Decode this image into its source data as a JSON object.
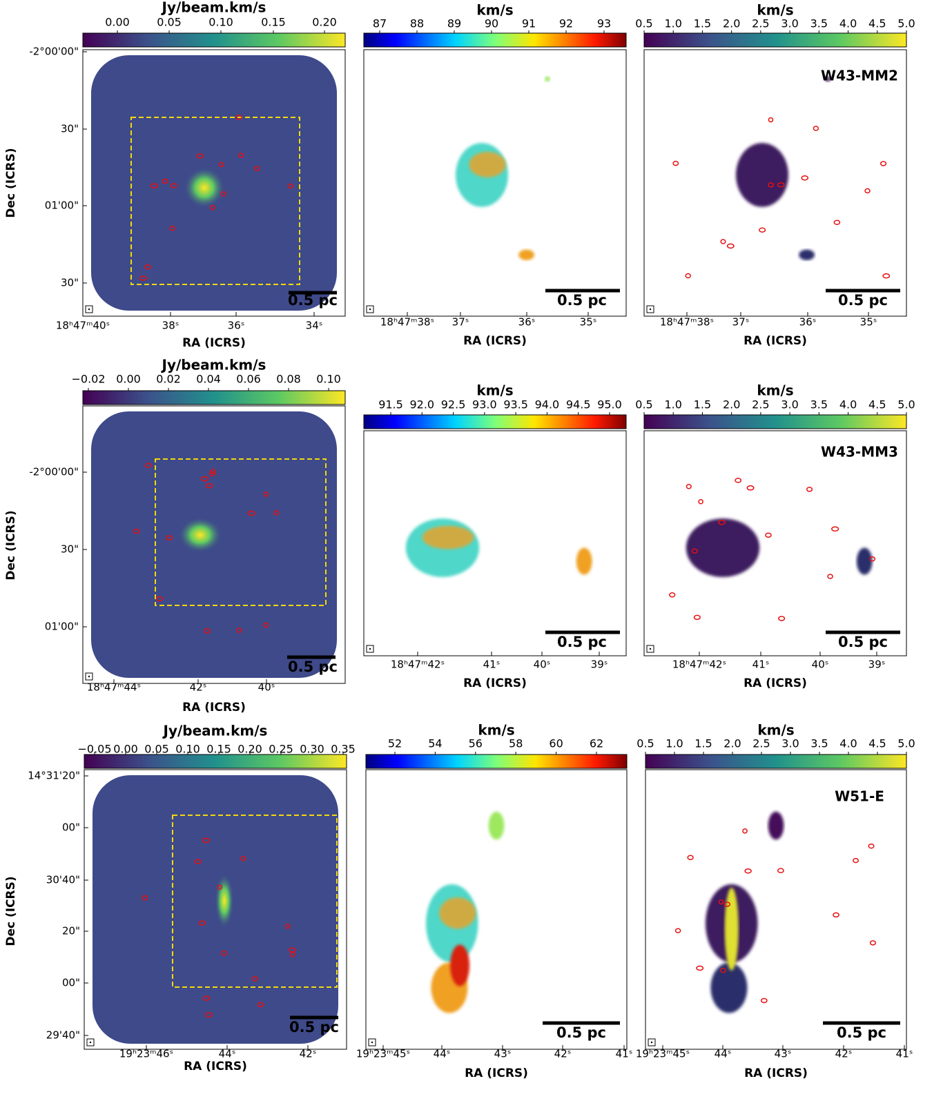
{
  "panels": [
    {
      "colorbar_label": "Jy/beam.km/s",
      "colorbar_ticks": [
        "0.00",
        "0.05",
        "0.10",
        "0.15",
        "0.20"
      ],
      "dec_label": "Dec (ICRS)",
      "dec_ticks": [
        "-2°00'00\"",
        "30\"",
        "01'00\"",
        "30\""
      ],
      "ra_label": "RA (ICRS)",
      "ra_ticks": [
        "18ʰ47ᵐ40ˢ",
        "38ˢ",
        "36ˢ",
        "34ˢ"
      ],
      "scale_label": "0.5 pc"
    },
    {
      "colorbar_label": "km/s",
      "colorbar_ticks": [
        "87",
        "88",
        "89",
        "90",
        "91",
        "92",
        "93"
      ],
      "ra_label": "RA (ICRS)",
      "ra_ticks": [
        "18ʰ47ᵐ38ˢ",
        "37ˢ",
        "36ˢ",
        "35ˢ"
      ],
      "scale_label": "0.5 pc"
    },
    {
      "colorbar_label": "km/s",
      "colorbar_ticks": [
        "0.5",
        "1.0",
        "1.5",
        "2.0",
        "2.5",
        "3.0",
        "3.5",
        "4.0",
        "4.5",
        "5.0"
      ],
      "ra_label": "RA (ICRS)",
      "ra_ticks": [
        "18ʰ47ᵐ38ˢ",
        "37ˢ",
        "36ˢ",
        "35ˢ"
      ],
      "scale_label": "0.5 pc",
      "source": "W43-MM2"
    },
    {
      "colorbar_label": "Jy/beam.km/s",
      "colorbar_ticks": [
        "−0.02",
        "0.00",
        "0.02",
        "0.04",
        "0.06",
        "0.08",
        "0.10"
      ],
      "dec_label": "Dec (ICRS)",
      "dec_ticks": [
        "-2°00'00\"",
        "30\"",
        "01'00\""
      ],
      "ra_label": "RA (ICRS)",
      "ra_ticks": [
        "18ʰ47ᵐ44ˢ",
        "42ˢ",
        "40ˢ"
      ],
      "scale_label": "0.5 pc"
    },
    {
      "colorbar_label": "km/s",
      "colorbar_ticks": [
        "91.5",
        "92.0",
        "92.5",
        "93.0",
        "93.5",
        "94.0",
        "94.5",
        "95.0"
      ],
      "ra_label": "RA (ICRS)",
      "ra_ticks": [
        "18ʰ47ᵐ42ˢ",
        "41ˢ",
        "40ˢ",
        "39ˢ"
      ],
      "scale_label": "0.5 pc"
    },
    {
      "colorbar_label": "km/s",
      "colorbar_ticks": [
        "0.5",
        "1.0",
        "1.5",
        "2.0",
        "2.5",
        "3.0",
        "3.5",
        "4.0",
        "4.5",
        "5.0"
      ],
      "ra_label": "RA (ICRS)",
      "ra_ticks": [
        "18ʰ47ᵐ42ˢ",
        "41ˢ",
        "40ˢ",
        "39ˢ"
      ],
      "scale_label": "0.5 pc",
      "source": "W43-MM3"
    },
    {
      "colorbar_label": "Jy/beam.km/s",
      "colorbar_ticks": [
        "−0.05",
        "0.00",
        "0.05",
        "0.10",
        "0.15",
        "0.20",
        "0.25",
        "0.30",
        "0.35"
      ],
      "dec_label": "Dec (ICRS)",
      "dec_ticks": [
        "14°31'20\"",
        "00\"",
        "30'40\"",
        "20\"",
        "00\"",
        "29'40\""
      ],
      "ra_label": "RA (ICRS)",
      "ra_ticks": [
        "19ʰ23ᵐ46ˢ",
        "44ˢ",
        "42ˢ"
      ],
      "scale_label": "0.5 pc"
    },
    {
      "colorbar_label": "km/s",
      "colorbar_ticks": [
        "52",
        "54",
        "56",
        "58",
        "60",
        "62"
      ],
      "ra_label": "RA (ICRS)",
      "ra_ticks": [
        "19ʰ23ᵐ45ˢ",
        "44ˢ",
        "43ˢ",
        "42ˢ",
        "41ˢ"
      ],
      "scale_label": "0.5 pc"
    },
    {
      "colorbar_label": "km/s",
      "colorbar_ticks": [
        "0.5",
        "1.0",
        "1.5",
        "2.0",
        "2.5",
        "3.0",
        "3.5",
        "4.0",
        "4.5",
        "5.0"
      ],
      "ra_label": "RA (ICRS)",
      "ra_ticks": [
        "19ʰ23ᵐ45ˢ",
        "44ˢ",
        "43ˢ",
        "42ˢ",
        "41ˢ"
      ],
      "scale_label": "0.5 pc",
      "source": "W51-E"
    }
  ]
}
